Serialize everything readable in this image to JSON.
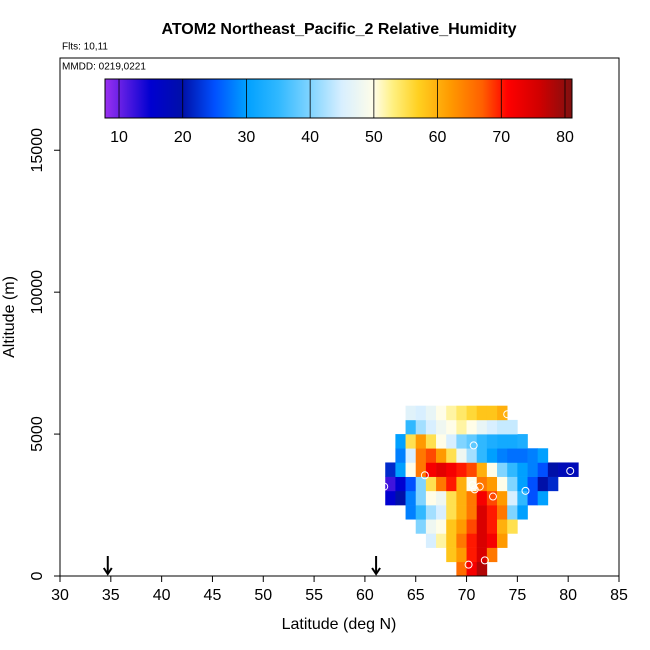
{
  "chart_data": {
    "type": "curtain",
    "title": "ATOM2 Northeast_Pacific_2 Relative_Humidity",
    "annotations": [
      "Flts: 10,11",
      "MMDD: 0219,0221"
    ],
    "x_label": "Latitude (deg N)",
    "y_label": "Altitude (m)",
    "xlim": [
      30,
      85
    ],
    "xticks": [
      30,
      35,
      40,
      45,
      50,
      55,
      60,
      65,
      70,
      75,
      80,
      85
    ],
    "ylim": [
      0,
      18250
    ],
    "yticks": [
      0,
      5000,
      10000,
      15000
    ],
    "lat_edges": [
      62,
      63,
      64,
      65,
      66,
      67,
      68,
      69,
      70,
      71,
      72,
      73,
      74,
      75,
      76,
      77,
      78,
      79,
      80,
      81
    ],
    "alt_edges": [
      0,
      500,
      1000,
      1500,
      2000,
      2500,
      3000,
      3500,
      4000,
      4500,
      5000,
      5500,
      6000
    ],
    "values": [
      [
        null,
        null,
        null,
        null,
        null,
        null,
        null,
        66,
        72,
        78,
        null,
        null,
        null,
        null,
        null,
        null,
        null,
        null,
        null
      ],
      [
        null,
        null,
        null,
        null,
        null,
        null,
        58,
        62,
        70,
        75,
        65,
        null,
        null,
        null,
        null,
        null,
        null,
        null,
        null
      ],
      [
        null,
        null,
        null,
        null,
        45,
        52,
        58,
        65,
        70,
        75,
        72,
        62,
        null,
        null,
        null,
        null,
        null,
        null,
        null
      ],
      [
        null,
        null,
        null,
        40,
        48,
        50,
        58,
        62,
        68,
        75,
        70,
        60,
        55,
        null,
        null,
        null,
        null,
        null,
        null
      ],
      [
        null,
        null,
        28,
        35,
        42,
        45,
        55,
        60,
        65,
        75,
        70,
        65,
        40,
        30,
        null,
        null,
        null,
        null,
        null
      ],
      [
        15,
        20,
        28,
        40,
        50,
        48,
        55,
        60,
        65,
        72,
        68,
        62,
        45,
        35,
        25,
        30,
        null,
        null,
        null
      ],
      [
        12,
        15,
        25,
        40,
        55,
        65,
        70,
        60,
        50,
        65,
        62,
        50,
        40,
        30,
        25,
        20,
        22,
        null,
        null
      ],
      [
        22,
        30,
        50,
        65,
        72,
        74,
        72,
        70,
        68,
        60,
        50,
        40,
        35,
        30,
        28,
        25,
        20,
        18,
        18
      ],
      [
        null,
        28,
        45,
        65,
        68,
        62,
        55,
        48,
        42,
        35,
        30,
        28,
        27,
        27,
        28,
        30,
        null,
        null,
        null
      ],
      [
        null,
        30,
        55,
        62,
        55,
        50,
        45,
        40,
        38,
        35,
        33,
        32,
        32,
        33,
        null,
        null,
        null,
        null,
        null
      ],
      [
        null,
        null,
        35,
        42,
        45,
        48,
        50,
        52,
        50,
        47,
        45,
        44,
        44,
        null,
        null,
        null,
        null,
        null,
        null
      ],
      [
        null,
        null,
        46,
        45,
        47,
        50,
        52,
        54,
        56,
        58,
        58,
        60,
        null,
        null,
        null,
        null,
        null,
        null,
        null
      ]
    ],
    "points": {
      "x": [
        74,
        70.7,
        65.9,
        61.9,
        70.6,
        71.3,
        70.8,
        72.6,
        75.8,
        80.2,
        70.2,
        71.8
      ],
      "y": [
        5700,
        4600,
        3550,
        3150,
        3200,
        3150,
        3050,
        2800,
        3000,
        3700,
        400,
        550
      ]
    },
    "arrows_x": [
      34.7,
      61.1
    ],
    "colorbar": {
      "lim": [
        7.8,
        81.1
      ],
      "ticks": [
        10,
        20,
        30,
        40,
        50,
        60,
        70,
        80
      ],
      "stops": [
        7.8,
        15,
        20,
        25,
        30,
        35,
        40,
        45,
        50,
        53,
        57,
        62,
        67,
        71,
        76,
        81.1
      ],
      "colors": [
        "#9a30f0",
        "#0000d0",
        "#0010a8",
        "#0050ff",
        "#00a0ff",
        "#30b8ff",
        "#80d4ff",
        "#d8efff",
        "#fffde8",
        "#fff080",
        "#ffd020",
        "#ff9a00",
        "#ff6000",
        "#ff0000",
        "#d00000",
        "#801010"
      ]
    }
  }
}
